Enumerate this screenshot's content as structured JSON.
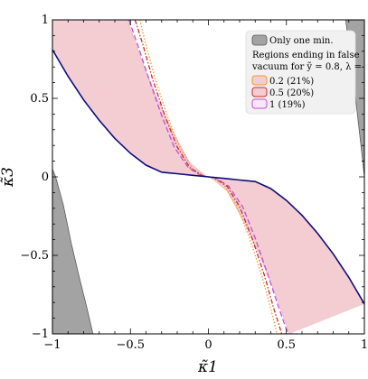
{
  "chart_data": {
    "type": "area",
    "xlabel": "κ̃1",
    "ylabel": "κ̃3",
    "xlim": [
      -1,
      1
    ],
    "ylim": [
      -1,
      1
    ],
    "xticks": [
      -1,
      -0.5,
      0,
      0.5,
      1
    ],
    "xtick_labels": [
      "−1",
      "−0.5",
      "0",
      "0.5",
      "1"
    ],
    "yticks": [
      -1,
      -0.5,
      0,
      0.5,
      1
    ],
    "ytick_labels": [
      "−1",
      "−0.5",
      "0",
      "0.5",
      "1"
    ],
    "legend": {
      "placement": "top-right",
      "only_one_min_label": "Only one min.",
      "title_line1": "Regions ending in false",
      "title_line2": "vacuum for ỹ = 0.8, λ =",
      "entries": [
        {
          "label": "0.2  (21%)",
          "color": "#f29a1f"
        },
        {
          "label": "0.5  (20%)",
          "color": "#cc2a2a"
        },
        {
          "label": "1  (19%)",
          "color": "#c04fd8"
        }
      ]
    },
    "only_one_min_regions": {
      "color": "#a3a3a3",
      "right_boundary": {
        "x": [
          0.88,
          0.93,
          0.98,
          1.0
        ],
        "y": [
          1.0,
          0.62,
          0.18,
          0.0
        ]
      },
      "left_boundary": {
        "x": [
          -1.0,
          -0.98,
          -0.93,
          -0.88,
          -0.83,
          -0.78,
          -0.74
        ],
        "y": [
          0.05,
          0.0,
          -0.18,
          -0.42,
          -0.63,
          -0.83,
          -1.0
        ]
      }
    },
    "false_vacuum_region": {
      "fill": "#f4cdd3",
      "upper_left_edge": {
        "x": [
          -1.0,
          -0.52
        ],
        "y": [
          1.0,
          1.0
        ]
      },
      "upper_outer": {
        "x": [
          -0.52,
          -0.42,
          -0.32,
          -0.22,
          -0.12,
          -0.02,
          0.0
        ],
        "y": [
          1.0,
          0.72,
          0.48,
          0.27,
          0.09,
          0.008,
          0.0
        ]
      },
      "lower_outer": {
        "x": [
          0.0,
          0.02,
          0.12,
          0.22,
          0.32,
          0.42,
          0.52
        ],
        "y": [
          0.0,
          -0.008,
          -0.09,
          -0.27,
          -0.48,
          -0.72,
          -1.0
        ]
      }
    },
    "boundary_curve": {
      "color": "#0c0c7a",
      "x": [
        -1.0,
        -0.9,
        -0.8,
        -0.7,
        -0.6,
        -0.5,
        -0.4,
        -0.3,
        -0.25,
        -0.2,
        -0.1,
        0.0,
        0.1,
        0.2,
        0.25,
        0.3,
        0.4,
        0.5,
        0.6,
        0.7,
        0.8,
        0.9,
        1.0
      ],
      "y": [
        0.81,
        0.64,
        0.49,
        0.36,
        0.245,
        0.15,
        0.075,
        0.03,
        0.025,
        0.02,
        0.01,
        0.0,
        -0.01,
        -0.02,
        -0.025,
        -0.03,
        -0.075,
        -0.15,
        -0.245,
        -0.36,
        -0.49,
        -0.64,
        -0.81
      ]
    },
    "series": [
      {
        "name": "0.2  (21%)",
        "color": "#f29a1f",
        "dash": "dotted",
        "x": [
          -0.44,
          -0.4,
          -0.34,
          -0.26,
          -0.18,
          -0.1,
          -0.03,
          0.0,
          0.03,
          0.1,
          0.18,
          0.26,
          0.34,
          0.4,
          0.44,
          0.47
        ],
        "y": [
          1.0,
          0.84,
          0.62,
          0.38,
          0.18,
          0.05,
          0.006,
          0.0,
          -0.006,
          -0.05,
          -0.18,
          -0.38,
          -0.62,
          -0.84,
          -1.0,
          -1.0
        ]
      },
      {
        "name": "0.5  (20%)",
        "color": "#cc2a2a",
        "dash": "dashdot",
        "x": [
          -0.47,
          -0.42,
          -0.36,
          -0.28,
          -0.2,
          -0.12,
          -0.04,
          0.0,
          0.04,
          0.12,
          0.2,
          0.28,
          0.36,
          0.42,
          0.47,
          0.52
        ],
        "y": [
          1.0,
          0.84,
          0.63,
          0.39,
          0.19,
          0.06,
          0.008,
          0.0,
          -0.008,
          -0.06,
          -0.19,
          -0.39,
          -0.63,
          -0.84,
          -1.0,
          -1.0
        ]
      },
      {
        "name": "1  (19%)",
        "color": "#c04fd8",
        "dash": "dashed",
        "x": [
          -0.51,
          -0.45,
          -0.38,
          -0.3,
          -0.22,
          -0.13,
          -0.05,
          0.0,
          0.05,
          0.13,
          0.22,
          0.3,
          0.38,
          0.45,
          0.51,
          0.57
        ],
        "y": [
          1.0,
          0.83,
          0.62,
          0.39,
          0.19,
          0.06,
          0.008,
          0.0,
          -0.008,
          -0.06,
          -0.19,
          -0.39,
          -0.62,
          -0.83,
          -1.0,
          -1.0
        ]
      }
    ]
  }
}
